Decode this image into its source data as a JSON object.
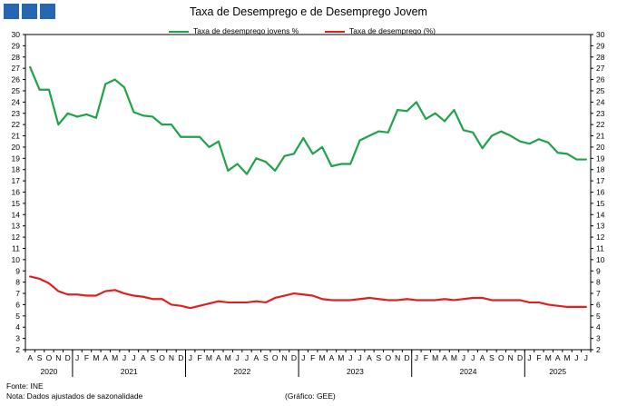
{
  "header": {
    "logo_color": "#2767b0"
  },
  "chart_data": {
    "type": "line",
    "title": "Taxa de Desemprego e de Desemprego Jovem",
    "xlabel": "",
    "ylabel": "",
    "ylim": [
      2,
      30
    ],
    "y_ticks": [
      2,
      3,
      4,
      5,
      6,
      7,
      8,
      9,
      10,
      11,
      12,
      13,
      14,
      15,
      16,
      17,
      18,
      19,
      20,
      21,
      22,
      23,
      24,
      25,
      26,
      27,
      28,
      29,
      30
    ],
    "grid": false,
    "legend_position": "top",
    "x_month_labels": [
      "A",
      "S",
      "O",
      "N",
      "D",
      "J",
      "F",
      "M",
      "A",
      "M",
      "J",
      "J",
      "A",
      "S",
      "O",
      "N",
      "D",
      "J",
      "F",
      "M",
      "A",
      "M",
      "J",
      "J",
      "A",
      "S",
      "O",
      "N",
      "D",
      "J",
      "F",
      "M",
      "A",
      "M",
      "J",
      "J",
      "A",
      "S",
      "O",
      "N",
      "D",
      "J",
      "F",
      "M",
      "A",
      "M",
      "J",
      "J",
      "A",
      "S",
      "O",
      "N",
      "D",
      "J",
      "F",
      "M",
      "A",
      "M",
      "J",
      "J"
    ],
    "x_year_labels": [
      {
        "label": "2020",
        "start": 0,
        "end": 4
      },
      {
        "label": "2021",
        "start": 5,
        "end": 16
      },
      {
        "label": "2022",
        "start": 17,
        "end": 28
      },
      {
        "label": "2023",
        "start": 29,
        "end": 40
      },
      {
        "label": "2024",
        "start": 41,
        "end": 52
      },
      {
        "label": "2025",
        "start": 53,
        "end": 59
      }
    ],
    "series": [
      {
        "name": "Taxa de desemprego jovens %",
        "color": "#1fa34a",
        "values": [
          27.1,
          25.1,
          25.1,
          22.0,
          23.0,
          22.7,
          22.9,
          22.6,
          25.6,
          26.0,
          25.3,
          23.1,
          22.8,
          22.7,
          22.0,
          22.0,
          20.9,
          20.9,
          20.9,
          20.0,
          20.5,
          17.9,
          18.5,
          17.6,
          19.0,
          18.7,
          17.9,
          19.2,
          19.4,
          20.8,
          19.4,
          20.0,
          18.3,
          18.5,
          18.5,
          20.6,
          21.0,
          21.4,
          21.3,
          23.3,
          23.2,
          24.0,
          22.5,
          23.0,
          22.3,
          23.3,
          21.5,
          21.3,
          19.9,
          21.0,
          21.4,
          21.0,
          20.5,
          20.3,
          20.7,
          20.4,
          19.5,
          19.4,
          18.9,
          18.9
        ]
      },
      {
        "name": "Taxa de desemprego (%)",
        "color": "#e02020",
        "values": [
          8.5,
          8.3,
          7.9,
          7.2,
          6.9,
          6.9,
          6.8,
          6.8,
          7.2,
          7.3,
          7.0,
          6.8,
          6.7,
          6.5,
          6.5,
          6.0,
          5.9,
          5.7,
          5.9,
          6.1,
          6.3,
          6.2,
          6.2,
          6.2,
          6.3,
          6.2,
          6.6,
          6.8,
          7.0,
          6.9,
          6.8,
          6.5,
          6.4,
          6.4,
          6.4,
          6.5,
          6.6,
          6.5,
          6.4,
          6.4,
          6.5,
          6.4,
          6.4,
          6.4,
          6.5,
          6.4,
          6.5,
          6.6,
          6.6,
          6.4,
          6.4,
          6.4,
          6.4,
          6.2,
          6.2,
          6.0,
          5.9,
          5.8,
          5.8,
          5.8
        ]
      }
    ]
  },
  "footer": {
    "source": "Fonte: INE",
    "note": "Nota: Dados ajustados de sazonalidade",
    "credit": "(Gráfico: GEE)"
  }
}
